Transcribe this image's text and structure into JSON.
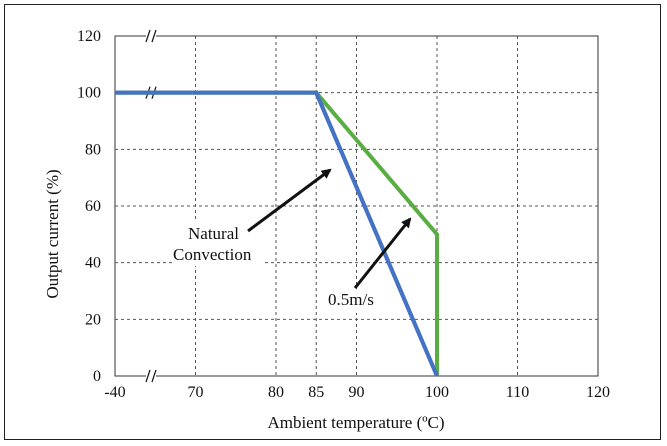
{
  "chart_data": {
    "type": "line",
    "xlabel": "Ambient temperature (ºC)",
    "ylabel": "Output current (%)",
    "x_ticks": [
      "-40",
      "70",
      "80",
      "85",
      "90",
      "100",
      "110",
      "120"
    ],
    "y_ticks": [
      "0",
      "20",
      "40",
      "60",
      "80",
      "100",
      "120"
    ],
    "xlim": [
      60,
      120
    ],
    "ylim": [
      0,
      120
    ],
    "grid": true,
    "axis_break": "between -40 and 70 on x axis",
    "series": [
      {
        "name": "Natural Convection",
        "color": "#4472c4",
        "points": [
          [
            "-40",
            100
          ],
          [
            85,
            100
          ],
          [
            100,
            0
          ]
        ]
      },
      {
        "name": "0.5m/s",
        "color": "#5aad43",
        "points": [
          [
            "-40",
            100
          ],
          [
            85,
            100
          ],
          [
            100,
            50
          ],
          [
            100,
            0
          ]
        ]
      }
    ],
    "annotations": [
      {
        "text_lines": [
          "Natural",
          "Convection"
        ],
        "points_to": "Natural Convection"
      },
      {
        "text_lines": [
          "0.5m/s"
        ],
        "points_to": "0.5m/s"
      }
    ]
  }
}
